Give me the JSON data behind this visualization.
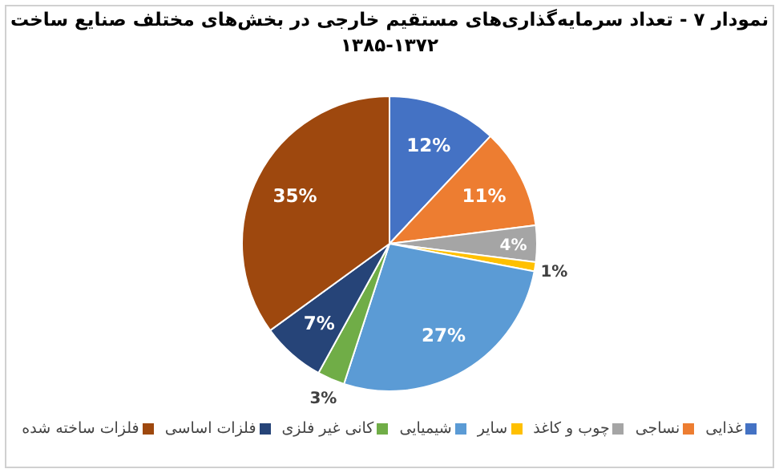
{
  "chart_data": {
    "type": "pie",
    "title": "نمودار ۷ - تعداد سرمایه‌گذاری‌های مستقیم خارجی در بخش‌های مختلف صنایع ساخت ۱۳۷۲-۱۳۸۵",
    "categories": [
      "غذایی",
      "نساجی",
      "چوب و کاغذ",
      "سایر",
      "شیمیایی",
      "کانی غیر فلزی",
      "فلزات اساسی",
      "فلزات ساخته شده"
    ],
    "values": [
      12,
      11,
      4,
      1,
      27,
      3,
      7,
      35
    ],
    "value_labels": [
      "12%",
      "11%",
      "4%",
      "1%",
      "27%",
      "3%",
      "7%",
      "35%"
    ],
    "colors": [
      "#4472c4",
      "#ed7d31",
      "#a5a5a5",
      "#ffc000",
      "#5b9bd5",
      "#70ad47",
      "#264478",
      "#9e480e"
    ],
    "legend": "bottom"
  }
}
